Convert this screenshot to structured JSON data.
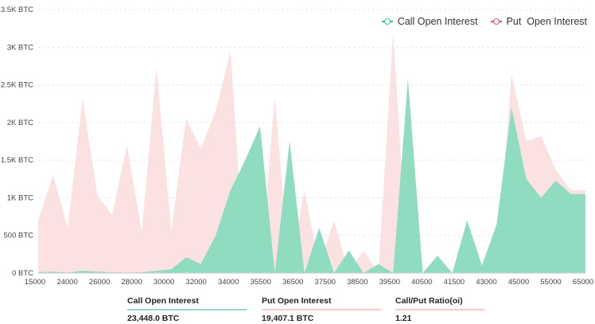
{
  "chart_data": {
    "type": "area",
    "title": "",
    "xlabel": "",
    "ylabel": "",
    "ylim": [
      0,
      3500
    ],
    "y_ticks": [
      "0 BTC",
      "500 BTC",
      "1K BTC",
      "1.5K BTC",
      "2K BTC",
      "2.5K BTC",
      "3K BTC",
      "3.5K BTC"
    ],
    "x_tick_labels": [
      "15000",
      "24000",
      "26000",
      "28000",
      "30000",
      "32000",
      "34000",
      "35500",
      "36500",
      "37500",
      "38500",
      "39500",
      "40500",
      "41500",
      "43000",
      "45000",
      "55000",
      "65000"
    ],
    "grid": "horizontal dashed",
    "legend_position": "top-right",
    "x": [
      15000,
      20000,
      22000,
      24000,
      25000,
      26000,
      27000,
      28000,
      29000,
      30000,
      31000,
      32000,
      33000,
      34000,
      35000,
      35500,
      36000,
      36500,
      37000,
      37500,
      38000,
      38500,
      39000,
      39500,
      40000,
      40500,
      41000,
      41500,
      42000,
      42500,
      43000,
      44000,
      45000,
      46000,
      50000,
      55000,
      60000,
      65000
    ],
    "series": [
      {
        "name": "Call Open Interest",
        "color": "#8fdcc0",
        "values": [
          10,
          20,
          5,
          30,
          20,
          10,
          5,
          10,
          30,
          50,
          210,
          120,
          500,
          1100,
          1500,
          1950,
          0,
          1750,
          0,
          600,
          0,
          300,
          0,
          120,
          0,
          2580,
          0,
          230,
          0,
          700,
          100,
          650,
          2200,
          1250,
          1000,
          1230,
          1050,
          1050
        ]
      },
      {
        "name": "Put  Open Interest",
        "color": "#fbe1e1",
        "values": [
          700,
          1300,
          600,
          2320,
          1030,
          770,
          1700,
          550,
          2730,
          560,
          2050,
          1650,
          2150,
          2950,
          0,
          0,
          2340,
          0,
          1100,
          100,
          700,
          0,
          300,
          0,
          3200,
          0,
          0,
          0,
          0,
          0,
          0,
          0,
          2640,
          1750,
          1820,
          1370,
          1100,
          1100
        ]
      }
    ]
  },
  "legend": {
    "call_label": "Call Open Interest",
    "put_label": "Put  Open Interest",
    "call_color": "#3ec08e",
    "put_color": "#e2536b"
  },
  "summary": {
    "call": {
      "label": "Call Open Interest",
      "value": "23,448.0 BTC",
      "color": "#8fdcc0"
    },
    "put": {
      "label": "Put Open Interest",
      "value": "19,407.1 BTC",
      "color": "#f7c9cc"
    },
    "ratio": {
      "label": "Call/Put Ratio(oi)",
      "value": "1.21",
      "color": "#f7c9cc"
    }
  }
}
